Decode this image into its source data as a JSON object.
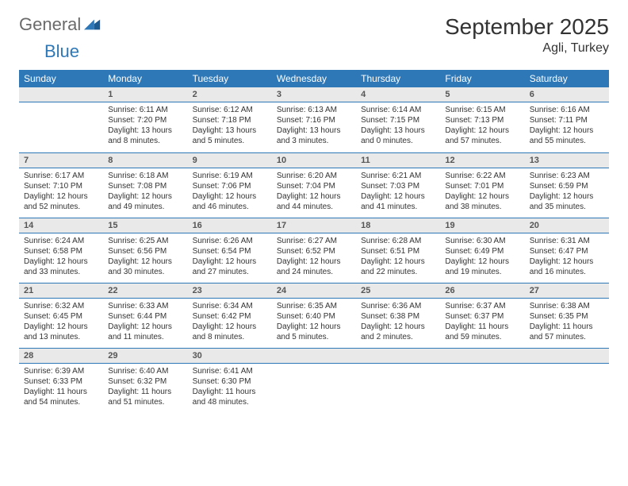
{
  "brand": {
    "word1": "General",
    "word2": "Blue"
  },
  "title": "September 2025",
  "location": "Agli, Turkey",
  "colors": {
    "header_bg": "#2e78b8",
    "header_fg": "#ffffff",
    "daynum_bg": "#e9e9e9",
    "text": "#333333",
    "rule": "#2e78b8",
    "logo_gray": "#6a6a6a",
    "logo_blue": "#2e78b8"
  },
  "typography": {
    "title_fontsize": 28,
    "location_fontsize": 16,
    "dayhead_fontsize": 12,
    "body_fontsize": 10
  },
  "day_headers": [
    "Sunday",
    "Monday",
    "Tuesday",
    "Wednesday",
    "Thursday",
    "Friday",
    "Saturday"
  ],
  "weeks": [
    [
      {
        "blank": true
      },
      {
        "num": "1",
        "sunrise": "6:11 AM",
        "sunset": "7:20 PM",
        "daylight": "13 hours and 8 minutes."
      },
      {
        "num": "2",
        "sunrise": "6:12 AM",
        "sunset": "7:18 PM",
        "daylight": "13 hours and 5 minutes."
      },
      {
        "num": "3",
        "sunrise": "6:13 AM",
        "sunset": "7:16 PM",
        "daylight": "13 hours and 3 minutes."
      },
      {
        "num": "4",
        "sunrise": "6:14 AM",
        "sunset": "7:15 PM",
        "daylight": "13 hours and 0 minutes."
      },
      {
        "num": "5",
        "sunrise": "6:15 AM",
        "sunset": "7:13 PM",
        "daylight": "12 hours and 57 minutes."
      },
      {
        "num": "6",
        "sunrise": "6:16 AM",
        "sunset": "7:11 PM",
        "daylight": "12 hours and 55 minutes."
      }
    ],
    [
      {
        "num": "7",
        "sunrise": "6:17 AM",
        "sunset": "7:10 PM",
        "daylight": "12 hours and 52 minutes."
      },
      {
        "num": "8",
        "sunrise": "6:18 AM",
        "sunset": "7:08 PM",
        "daylight": "12 hours and 49 minutes."
      },
      {
        "num": "9",
        "sunrise": "6:19 AM",
        "sunset": "7:06 PM",
        "daylight": "12 hours and 46 minutes."
      },
      {
        "num": "10",
        "sunrise": "6:20 AM",
        "sunset": "7:04 PM",
        "daylight": "12 hours and 44 minutes."
      },
      {
        "num": "11",
        "sunrise": "6:21 AM",
        "sunset": "7:03 PM",
        "daylight": "12 hours and 41 minutes."
      },
      {
        "num": "12",
        "sunrise": "6:22 AM",
        "sunset": "7:01 PM",
        "daylight": "12 hours and 38 minutes."
      },
      {
        "num": "13",
        "sunrise": "6:23 AM",
        "sunset": "6:59 PM",
        "daylight": "12 hours and 35 minutes."
      }
    ],
    [
      {
        "num": "14",
        "sunrise": "6:24 AM",
        "sunset": "6:58 PM",
        "daylight": "12 hours and 33 minutes."
      },
      {
        "num": "15",
        "sunrise": "6:25 AM",
        "sunset": "6:56 PM",
        "daylight": "12 hours and 30 minutes."
      },
      {
        "num": "16",
        "sunrise": "6:26 AM",
        "sunset": "6:54 PM",
        "daylight": "12 hours and 27 minutes."
      },
      {
        "num": "17",
        "sunrise": "6:27 AM",
        "sunset": "6:52 PM",
        "daylight": "12 hours and 24 minutes."
      },
      {
        "num": "18",
        "sunrise": "6:28 AM",
        "sunset": "6:51 PM",
        "daylight": "12 hours and 22 minutes."
      },
      {
        "num": "19",
        "sunrise": "6:30 AM",
        "sunset": "6:49 PM",
        "daylight": "12 hours and 19 minutes."
      },
      {
        "num": "20",
        "sunrise": "6:31 AM",
        "sunset": "6:47 PM",
        "daylight": "12 hours and 16 minutes."
      }
    ],
    [
      {
        "num": "21",
        "sunrise": "6:32 AM",
        "sunset": "6:45 PM",
        "daylight": "12 hours and 13 minutes."
      },
      {
        "num": "22",
        "sunrise": "6:33 AM",
        "sunset": "6:44 PM",
        "daylight": "12 hours and 11 minutes."
      },
      {
        "num": "23",
        "sunrise": "6:34 AM",
        "sunset": "6:42 PM",
        "daylight": "12 hours and 8 minutes."
      },
      {
        "num": "24",
        "sunrise": "6:35 AM",
        "sunset": "6:40 PM",
        "daylight": "12 hours and 5 minutes."
      },
      {
        "num": "25",
        "sunrise": "6:36 AM",
        "sunset": "6:38 PM",
        "daylight": "12 hours and 2 minutes."
      },
      {
        "num": "26",
        "sunrise": "6:37 AM",
        "sunset": "6:37 PM",
        "daylight": "11 hours and 59 minutes."
      },
      {
        "num": "27",
        "sunrise": "6:38 AM",
        "sunset": "6:35 PM",
        "daylight": "11 hours and 57 minutes."
      }
    ],
    [
      {
        "num": "28",
        "sunrise": "6:39 AM",
        "sunset": "6:33 PM",
        "daylight": "11 hours and 54 minutes."
      },
      {
        "num": "29",
        "sunrise": "6:40 AM",
        "sunset": "6:32 PM",
        "daylight": "11 hours and 51 minutes."
      },
      {
        "num": "30",
        "sunrise": "6:41 AM",
        "sunset": "6:30 PM",
        "daylight": "11 hours and 48 minutes."
      },
      {
        "blank": true
      },
      {
        "blank": true
      },
      {
        "blank": true
      },
      {
        "blank": true
      }
    ]
  ],
  "labels": {
    "sunrise": "Sunrise:",
    "sunset": "Sunset:",
    "daylight": "Daylight:"
  }
}
